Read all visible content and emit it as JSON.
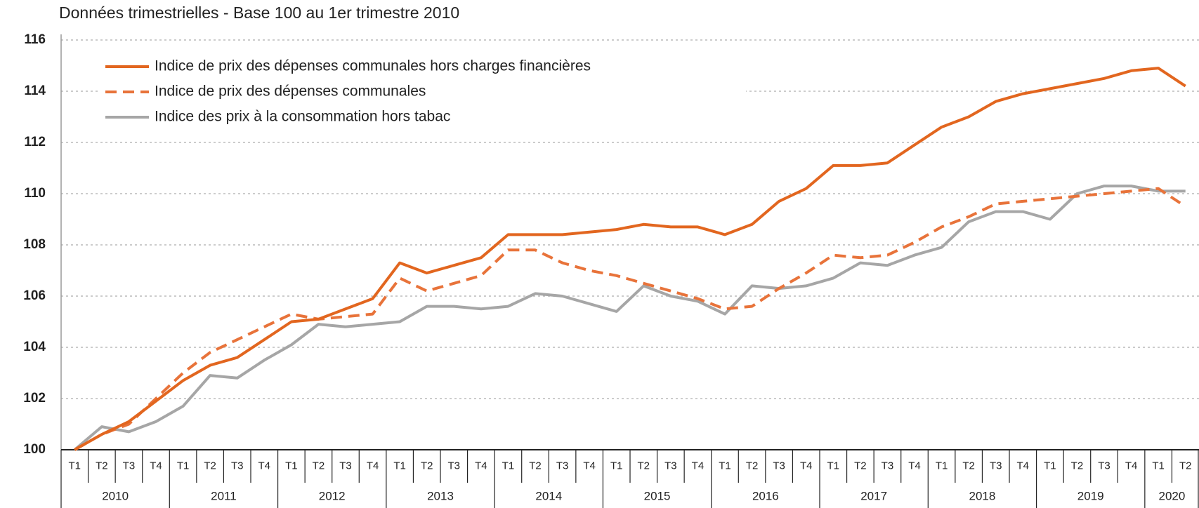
{
  "chart_data": {
    "type": "line",
    "title": "Données trimestrielles - Base 100 au 1er trimestre 2010",
    "years": [
      {
        "label": "2010",
        "quarters": [
          "T1",
          "T2",
          "T3",
          "T4"
        ]
      },
      {
        "label": "2011",
        "quarters": [
          "T1",
          "T2",
          "T3",
          "T4"
        ]
      },
      {
        "label": "2012",
        "quarters": [
          "T1",
          "T2",
          "T3",
          "T4"
        ]
      },
      {
        "label": "2013",
        "quarters": [
          "T1",
          "T2",
          "T3",
          "T4"
        ]
      },
      {
        "label": "2014",
        "quarters": [
          "T1",
          "T2",
          "T3",
          "T4"
        ]
      },
      {
        "label": "2015",
        "quarters": [
          "T1",
          "T2",
          "T3",
          "T4"
        ]
      },
      {
        "label": "2016",
        "quarters": [
          "T1",
          "T2",
          "T3",
          "T4"
        ]
      },
      {
        "label": "2017",
        "quarters": [
          "T1",
          "T2",
          "T3",
          "T4"
        ]
      },
      {
        "label": "2018",
        "quarters": [
          "T1",
          "T2",
          "T3",
          "T4"
        ]
      },
      {
        "label": "2019",
        "quarters": [
          "T1",
          "T2",
          "T3",
          "T4"
        ]
      },
      {
        "label": "2020",
        "quarters": [
          "T1",
          "T2"
        ]
      }
    ],
    "series": [
      {
        "name": "Indice de prix des dépenses communales hors charges financières",
        "color": "#e2661f",
        "style": "solid",
        "values": [
          100,
          100.6,
          101.1,
          101.9,
          102.7,
          103.3,
          103.6,
          104.3,
          105.0,
          105.1,
          105.5,
          105.9,
          107.3,
          106.9,
          107.2,
          107.5,
          108.4,
          108.4,
          108.4,
          108.5,
          108.6,
          108.8,
          108.7,
          108.7,
          108.4,
          108.8,
          109.7,
          110.2,
          111.1,
          111.1,
          111.2,
          111.9,
          112.6,
          113.0,
          113.6,
          113.9,
          114.1,
          114.3,
          114.5,
          114.8,
          114.9,
          114.2
        ]
      },
      {
        "name": "Indice de prix des dépenses communales",
        "color": "#e8733a",
        "style": "dashed",
        "values": [
          100,
          100.6,
          101.0,
          102.0,
          103.0,
          103.8,
          104.3,
          104.8,
          105.3,
          105.1,
          105.2,
          105.3,
          106.7,
          106.2,
          106.5,
          106.8,
          107.8,
          107.8,
          107.3,
          107.0,
          106.8,
          106.5,
          106.2,
          105.9,
          105.5,
          105.6,
          106.3,
          106.9,
          107.6,
          107.5,
          107.6,
          108.1,
          108.7,
          109.1,
          109.6,
          109.7,
          109.8,
          109.9,
          110.0,
          110.1,
          110.2,
          109.5
        ]
      },
      {
        "name": "Indice des prix à la consommation hors tabac",
        "color": "#a6a6a6",
        "style": "solid",
        "values": [
          100,
          100.9,
          100.7,
          101.1,
          101.7,
          102.9,
          102.8,
          103.5,
          104.1,
          104.9,
          104.8,
          104.9,
          105.0,
          105.6,
          105.6,
          105.5,
          105.6,
          106.1,
          106.0,
          105.7,
          105.4,
          106.4,
          106.0,
          105.8,
          105.3,
          106.4,
          106.3,
          106.4,
          106.7,
          107.3,
          107.2,
          107.6,
          107.9,
          108.9,
          109.3,
          109.3,
          109.0,
          110.0,
          110.3,
          110.3,
          110.1,
          110.1
        ]
      }
    ],
    "ylim": [
      100,
      116
    ],
    "yticks": [
      100,
      102,
      104,
      106,
      108,
      110,
      112,
      114,
      116
    ],
    "grid": true,
    "legend": "top-left"
  }
}
